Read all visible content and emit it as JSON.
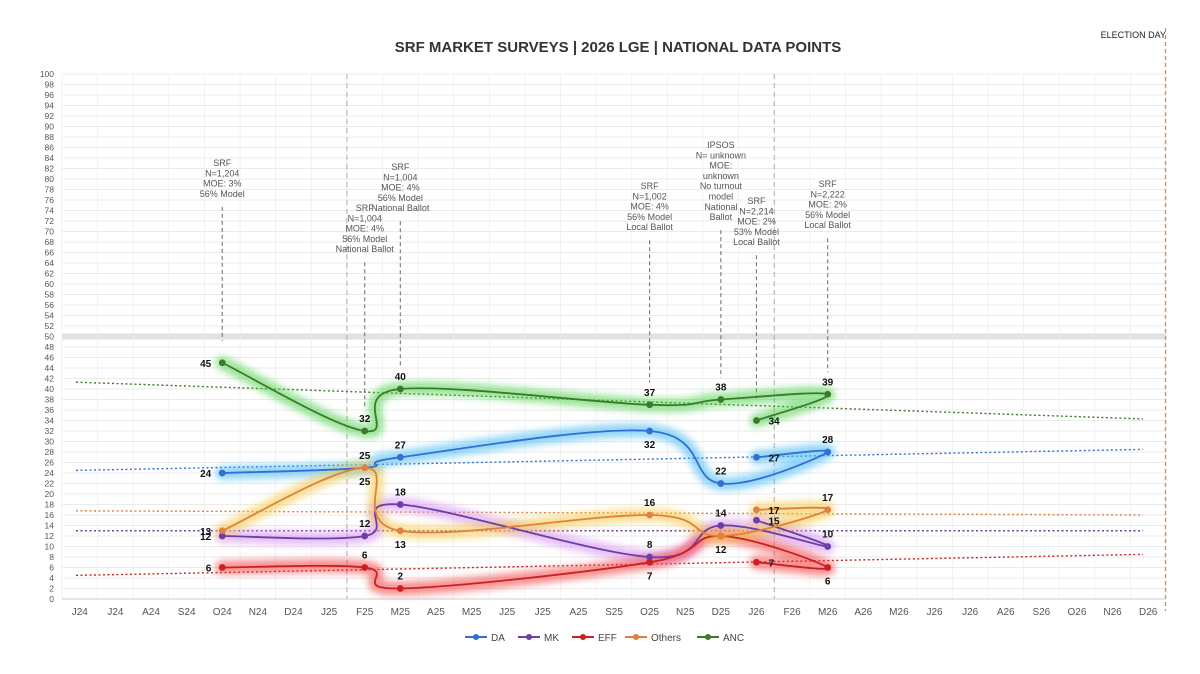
{
  "chart_data": {
    "type": "line",
    "title": "SRF MARKET SURVEYS | 2026 LGE | NATIONAL DATA POINTS",
    "election_day_label": "ELECTION DAY",
    "ylim": [
      0,
      100
    ],
    "y_step": 2,
    "y_highlight": 50,
    "x_ticks": [
      "J24",
      "J24",
      "A24",
      "S24",
      "O24",
      "N24",
      "D24",
      "J25",
      "F25",
      "M25",
      "A25",
      "M25",
      "J25",
      "J25",
      "A25",
      "S25",
      "O25",
      "N25",
      "D25",
      "J26",
      "F26",
      "M26",
      "A26",
      "M26",
      "J26",
      "J26",
      "A26",
      "S26",
      "O26",
      "N26",
      "D26"
    ],
    "vertical_dashed_at": [
      "J25",
      "J26"
    ],
    "election_day_at": "D26",
    "grid": true,
    "legend_position": "bottom",
    "series": [
      {
        "name": "DA",
        "color": "#2f6fd6",
        "glow": "#3fb6f2",
        "points": [
          {
            "x": "O24",
            "y": 24
          },
          {
            "x": "F25",
            "y": 25
          },
          {
            "x": "M25",
            "y": 27
          },
          {
            "x": "O25",
            "y": 32
          },
          {
            "x": "D25",
            "y": 22
          },
          {
            "x": "M26",
            "y": 28
          },
          {
            "x": "J26",
            "y": 27
          }
        ],
        "trend": [
          24.5,
          28.5
        ]
      },
      {
        "name": "MK",
        "color": "#6a3fa6",
        "glow": "#d58ef0",
        "points": [
          {
            "x": "O24",
            "y": 12
          },
          {
            "x": "F25",
            "y": 12
          },
          {
            "x": "M25",
            "y": 18
          },
          {
            "x": "O25",
            "y": 8
          },
          {
            "x": "D25",
            "y": 14
          },
          {
            "x": "M26",
            "y": 10
          },
          {
            "x": "J26",
            "y": 15
          }
        ],
        "trend": [
          13,
          13
        ]
      },
      {
        "name": "EFF",
        "color": "#cc2020",
        "glow": "#f03a3a",
        "points": [
          {
            "x": "O24",
            "y": 6
          },
          {
            "x": "F25",
            "y": 6
          },
          {
            "x": "M25",
            "y": 2
          },
          {
            "x": "O25",
            "y": 7
          },
          {
            "x": "D25",
            "y": 12
          },
          {
            "x": "M26",
            "y": 6
          },
          {
            "x": "J26",
            "y": 7
          }
        ],
        "trend": [
          4.5,
          8.5
        ]
      },
      {
        "name": "Others",
        "color": "#e08040",
        "glow": "#f5c842",
        "points": [
          {
            "x": "O24",
            "y": 13
          },
          {
            "x": "F25",
            "y": 25
          },
          {
            "x": "M25",
            "y": 13
          },
          {
            "x": "O25",
            "y": 16
          },
          {
            "x": "D25",
            "y": 12
          },
          {
            "x": "M26",
            "y": 17
          },
          {
            "x": "J26",
            "y": 17
          }
        ],
        "trend": [
          16.8,
          16
        ]
      },
      {
        "name": "ANC",
        "color": "#3c7a2a",
        "glow": "#4ccf4c",
        "points": [
          {
            "x": "O24",
            "y": 45
          },
          {
            "x": "F25",
            "y": 32
          },
          {
            "x": "M25",
            "y": 40
          },
          {
            "x": "O25",
            "y": 37
          },
          {
            "x": "D25",
            "y": 38
          },
          {
            "x": "M26",
            "y": 39
          },
          {
            "x": "J26",
            "y": 34
          }
        ],
        "trend": [
          41.3,
          34.3
        ]
      }
    ],
    "annotations": [
      {
        "x": "O24",
        "lines": [
          "SRF",
          "N=1,204",
          "MOE: 3%",
          "56% Model"
        ]
      },
      {
        "x": "F25",
        "lines": [
          "SRF",
          "N=1,004",
          "MOE: 4%",
          "56% Model",
          "National Ballot"
        ]
      },
      {
        "x": "M25",
        "lines": [
          "SRF",
          "N=1,004",
          "MOE: 4%",
          "56% Model",
          "National Ballot"
        ]
      },
      {
        "x": "O25",
        "lines": [
          "SRF",
          "N=1,002",
          "MOE: 4%",
          "56% Model",
          "Local Ballot"
        ]
      },
      {
        "x": "D25",
        "lines": [
          "IPSOS",
          "N= unknown",
          "MOE:",
          "unknown",
          "No turnout",
          "model",
          "National",
          "Ballot"
        ]
      },
      {
        "x": "M26",
        "lines": [
          "SRF",
          "N=2,222",
          "MOE: 2%",
          "56% Model",
          "Local Ballot"
        ]
      },
      {
        "x": "J26",
        "lines": [
          "SRF",
          "N=2,214",
          "MOE: 2%",
          "53% Model",
          "Local Ballot"
        ]
      }
    ],
    "data_labels": [
      {
        "x": "O24",
        "y": 45,
        "text": "45",
        "pos": "left"
      },
      {
        "x": "O24",
        "y": 24,
        "text": "24",
        "pos": "left"
      },
      {
        "x": "O24",
        "y": 13,
        "text": "13",
        "pos": "left"
      },
      {
        "x": "O24",
        "y": 12,
        "text": "12",
        "pos": "left"
      },
      {
        "x": "O24",
        "y": 6,
        "text": "6",
        "pos": "left"
      },
      {
        "x": "F25",
        "y": 32,
        "text": "32",
        "pos": "above"
      },
      {
        "x": "F25",
        "y": 25,
        "text": "25",
        "pos": "above"
      },
      {
        "x": "F25",
        "y": 25,
        "text": "25",
        "pos": "below"
      },
      {
        "x": "F25",
        "y": 12,
        "text": "12",
        "pos": "above"
      },
      {
        "x": "F25",
        "y": 6,
        "text": "6",
        "pos": "above"
      },
      {
        "x": "M25",
        "y": 40,
        "text": "40",
        "pos": "above"
      },
      {
        "x": "M25",
        "y": 27,
        "text": "27",
        "pos": "above"
      },
      {
        "x": "M25",
        "y": 18,
        "text": "18",
        "pos": "above"
      },
      {
        "x": "M25",
        "y": 13,
        "text": "13",
        "pos": "below"
      },
      {
        "x": "M25",
        "y": 2,
        "text": "2",
        "pos": "above"
      },
      {
        "x": "O25",
        "y": 37,
        "text": "37",
        "pos": "above"
      },
      {
        "x": "O25",
        "y": 32,
        "text": "32",
        "pos": "below"
      },
      {
        "x": "O25",
        "y": 16,
        "text": "16",
        "pos": "above"
      },
      {
        "x": "O25",
        "y": 8,
        "text": "8",
        "pos": "above"
      },
      {
        "x": "O25",
        "y": 7,
        "text": "7",
        "pos": "below"
      },
      {
        "x": "D25",
        "y": 38,
        "text": "38",
        "pos": "above"
      },
      {
        "x": "D25",
        "y": 22,
        "text": "22",
        "pos": "above"
      },
      {
        "x": "D25",
        "y": 14,
        "text": "14",
        "pos": "above"
      },
      {
        "x": "D25",
        "y": 12,
        "text": "12",
        "pos": "below"
      },
      {
        "x": "M26",
        "y": 39,
        "text": "39",
        "pos": "above"
      },
      {
        "x": "M26",
        "y": 28,
        "text": "28",
        "pos": "above"
      },
      {
        "x": "M26",
        "y": 17,
        "text": "17",
        "pos": "above"
      },
      {
        "x": "M26",
        "y": 10,
        "text": "10",
        "pos": "above"
      },
      {
        "x": "M26",
        "y": 6,
        "text": "6",
        "pos": "below"
      },
      {
        "x": "J26",
        "y": 34,
        "text": "34",
        "pos": "right"
      },
      {
        "x": "J26",
        "y": 27,
        "text": "27",
        "pos": "right"
      },
      {
        "x": "J26",
        "y": 17,
        "text": "17",
        "pos": "right"
      },
      {
        "x": "J26",
        "y": 15,
        "text": "15",
        "pos": "right"
      },
      {
        "x": "J26",
        "y": 7,
        "text": "7",
        "pos": "right"
      }
    ]
  }
}
